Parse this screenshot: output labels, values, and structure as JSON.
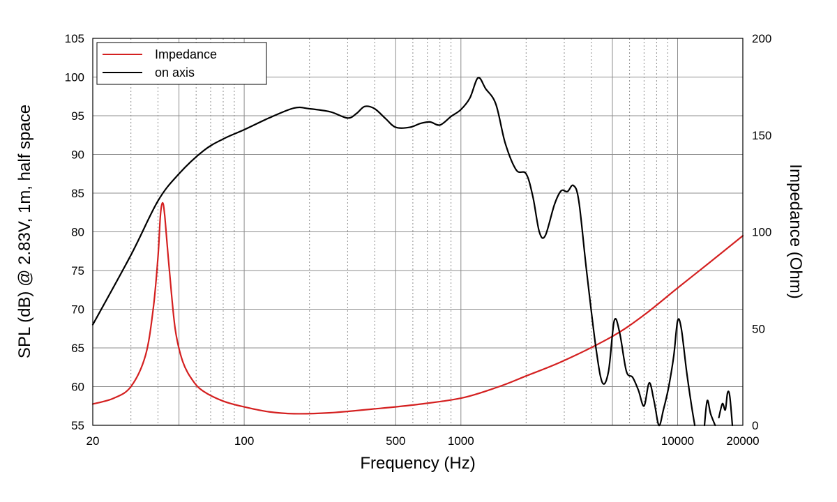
{
  "chart_data": {
    "type": "line",
    "title": "",
    "xlabel": "Frequency (Hz)",
    "ylabel": "SPL (dB) @ 2.83V, 1m, half space",
    "y2label": "Impedance (Ohm)",
    "xscale": "log",
    "xlim": [
      20,
      20000
    ],
    "ylim": [
      55,
      105
    ],
    "y2lim": [
      0,
      200
    ],
    "grid": true,
    "legend_position": "top-left",
    "colors": {
      "impedance": "#d42020",
      "on_axis": "#000000"
    },
    "x_ticks": [
      {
        "value": 20,
        "label": "20"
      },
      {
        "value": 100,
        "label": "100"
      },
      {
        "value": 500,
        "label": "500"
      },
      {
        "value": 1000,
        "label": "1000"
      },
      {
        "value": 10000,
        "label": "10000"
      },
      {
        "value": 20000,
        "label": "20000"
      }
    ],
    "y_ticks": [
      {
        "value": 55,
        "label": "55"
      },
      {
        "value": 60,
        "label": "60"
      },
      {
        "value": 65,
        "label": "65"
      },
      {
        "value": 70,
        "label": "70"
      },
      {
        "value": 75,
        "label": "75"
      },
      {
        "value": 80,
        "label": "80"
      },
      {
        "value": 85,
        "label": "85"
      },
      {
        "value": 90,
        "label": "90"
      },
      {
        "value": 95,
        "label": "95"
      },
      {
        "value": 100,
        "label": "100"
      },
      {
        "value": 105,
        "label": "105"
      }
    ],
    "y2_ticks": [
      {
        "value": 0,
        "label": "0"
      },
      {
        "value": 50,
        "label": "50"
      },
      {
        "value": 100,
        "label": "100"
      },
      {
        "value": 150,
        "label": "150"
      },
      {
        "value": 200,
        "label": "200"
      }
    ],
    "series": [
      {
        "name": "Impedance",
        "axis": "y2",
        "color": "#d42020",
        "points": [
          [
            20,
            11
          ],
          [
            25,
            14
          ],
          [
            30,
            20
          ],
          [
            35,
            36
          ],
          [
            38,
            60
          ],
          [
            40,
            87
          ],
          [
            41,
            108
          ],
          [
            42,
            115
          ],
          [
            43,
            108
          ],
          [
            45,
            82
          ],
          [
            48,
            50
          ],
          [
            52,
            33
          ],
          [
            58,
            23
          ],
          [
            65,
            17.5
          ],
          [
            80,
            12.5
          ],
          [
            100,
            9.5
          ],
          [
            130,
            7
          ],
          [
            170,
            6
          ],
          [
            250,
            6.5
          ],
          [
            400,
            8.5
          ],
          [
            600,
            10.5
          ],
          [
            1000,
            14
          ],
          [
            1500,
            20
          ],
          [
            2000,
            25.5
          ],
          [
            3000,
            33.5
          ],
          [
            5000,
            46
          ],
          [
            7000,
            57
          ],
          [
            10000,
            71
          ],
          [
            14000,
            84
          ],
          [
            20000,
            98
          ]
        ]
      },
      {
        "name": "on axis",
        "axis": "y",
        "color": "#000000",
        "points": [
          [
            20,
            68
          ],
          [
            30,
            77
          ],
          [
            40,
            84
          ],
          [
            50,
            87.5
          ],
          [
            65,
            90.5
          ],
          [
            80,
            92
          ],
          [
            100,
            93.2
          ],
          [
            130,
            94.7
          ],
          [
            170,
            96
          ],
          [
            200,
            95.9
          ],
          [
            250,
            95.5
          ],
          [
            300,
            94.7
          ],
          [
            330,
            95.3
          ],
          [
            360,
            96.2
          ],
          [
            400,
            95.9
          ],
          [
            450,
            94.6
          ],
          [
            500,
            93.5
          ],
          [
            580,
            93.5
          ],
          [
            650,
            94
          ],
          [
            720,
            94.2
          ],
          [
            800,
            93.8
          ],
          [
            900,
            94.9
          ],
          [
            1000,
            95.8
          ],
          [
            1100,
            97.3
          ],
          [
            1200,
            99.9
          ],
          [
            1300,
            98.5
          ],
          [
            1450,
            96.5
          ],
          [
            1600,
            91.5
          ],
          [
            1800,
            88
          ],
          [
            2000,
            87.5
          ],
          [
            2150,
            84.5
          ],
          [
            2300,
            80
          ],
          [
            2450,
            79.5
          ],
          [
            2700,
            83.5
          ],
          [
            2900,
            85.3
          ],
          [
            3100,
            85.2
          ],
          [
            3300,
            86
          ],
          [
            3500,
            84
          ],
          [
            3800,
            75
          ],
          [
            4200,
            65
          ],
          [
            4500,
            60.5
          ],
          [
            4800,
            62
          ],
          [
            5100,
            68.5
          ],
          [
            5400,
            67
          ],
          [
            5800,
            62
          ],
          [
            6200,
            61.2
          ],
          [
            6600,
            59.5
          ],
          [
            7000,
            57.5
          ],
          [
            7400,
            60.5
          ],
          [
            7800,
            58
          ],
          [
            8200,
            55
          ],
          [
            8600,
            57
          ],
          [
            9100,
            60
          ],
          [
            9600,
            64
          ],
          [
            10000,
            68.5
          ],
          [
            10400,
            67.5
          ],
          [
            11000,
            62
          ],
          [
            11600,
            57.5
          ],
          [
            12000,
            55
          ],
          "break",
          [
            13300,
            55
          ],
          [
            13700,
            58.2
          ],
          [
            14200,
            56.5
          ],
          [
            14900,
            55
          ],
          "break",
          [
            15500,
            56
          ],
          [
            16100,
            57.8
          ],
          [
            16600,
            57
          ],
          [
            17000,
            59.2
          ],
          [
            17400,
            58.8
          ],
          [
            17900,
            55
          ]
        ]
      }
    ]
  }
}
